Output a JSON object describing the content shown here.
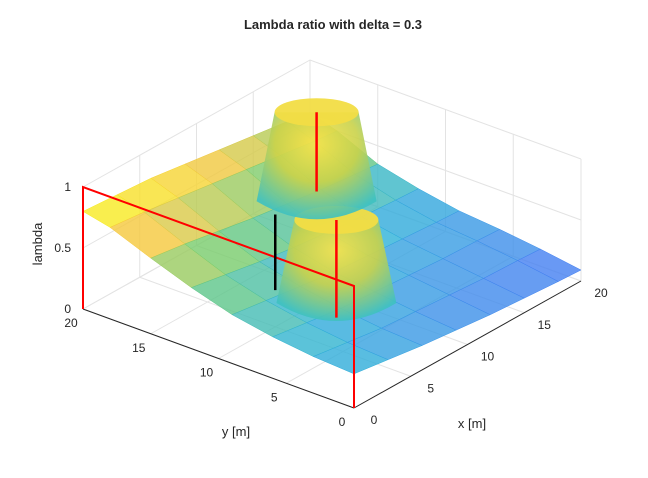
{
  "chart_data": {
    "type": "surface",
    "title": "Lambda ratio with delta = 0.3",
    "xlabel": "x [m]",
    "ylabel": "y [m]",
    "zlabel": "lambda",
    "xlim": [
      0,
      20
    ],
    "ylim": [
      0,
      20
    ],
    "zlim": [
      0,
      1
    ],
    "xticks": [
      "0",
      "5",
      "10",
      "15",
      "20"
    ],
    "yticks": [
      "0",
      "5",
      "10",
      "15",
      "20"
    ],
    "zticks": [
      "0",
      "0.5",
      "1"
    ],
    "colormap": "parula",
    "grid": true,
    "surface_rows": [
      {
        "y": 0,
        "z": [
          0.28,
          0.24,
          0.2,
          0.17,
          0.14,
          0.12,
          0.1,
          0.09
        ]
      },
      {
        "y": 3,
        "z": [
          0.3,
          0.26,
          0.22,
          0.2,
          0.18,
          0.16,
          0.15,
          0.14
        ]
      },
      {
        "y": 6,
        "z": [
          0.34,
          0.3,
          0.26,
          0.24,
          0.22,
          0.2,
          0.19,
          0.18
        ]
      },
      {
        "y": 9,
        "z": [
          0.4,
          0.36,
          0.32,
          0.28,
          0.26,
          0.24,
          0.22,
          0.21
        ]
      },
      {
        "y": 12,
        "z": [
          0.5,
          0.45,
          0.4,
          0.36,
          0.33,
          0.3,
          0.28,
          0.27
        ]
      },
      {
        "y": 15,
        "z": [
          0.62,
          0.58,
          0.53,
          0.48,
          0.44,
          0.4,
          0.37,
          0.35
        ]
      },
      {
        "y": 18,
        "z": [
          0.75,
          0.72,
          0.68,
          0.64,
          0.6,
          0.56,
          0.52,
          0.5
        ]
      },
      {
        "y": 20,
        "z": [
          0.8,
          0.78,
          0.76,
          0.72,
          0.68,
          0.64,
          0.6,
          0.57
        ]
      }
    ],
    "surface_x": [
      0,
      3,
      6,
      9,
      12,
      15,
      18,
      20
    ],
    "peaks": [
      {
        "name": "pillar-center",
        "x": 8,
        "y": 8,
        "z": 0.8
      },
      {
        "name": "pillar-corner",
        "x": 17,
        "y": 17,
        "z": 0.85
      }
    ],
    "markers": [
      {
        "name": "red-frame",
        "color": "#ff0000",
        "points": [
          [
            0,
            20,
            0
          ],
          [
            0,
            20,
            1
          ],
          [
            0,
            0,
            1
          ],
          [
            0,
            0,
            0
          ]
        ]
      },
      {
        "name": "red-line-center",
        "color": "#ff0000",
        "from": [
          8,
          8,
          0.8
        ],
        "to": [
          8,
          8,
          0
        ]
      },
      {
        "name": "red-line-corner",
        "color": "#ff0000",
        "from": [
          17,
          17,
          0.85
        ],
        "to": [
          17,
          17,
          0.2
        ]
      },
      {
        "name": "black-line",
        "color": "#000000",
        "from": [
          5,
          10,
          0.92
        ],
        "to": [
          5,
          10,
          0.3
        ]
      }
    ]
  }
}
